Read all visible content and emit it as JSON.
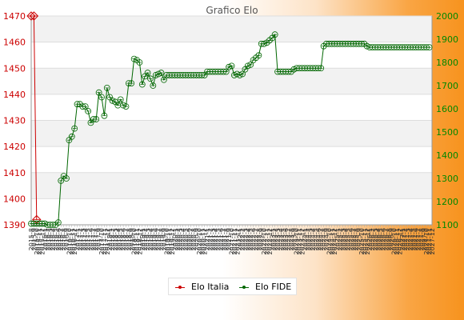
{
  "chart_data": {
    "type": "line",
    "title": "Grafico Elo",
    "x_tick_labels": [
      "2015-8",
      "2015-9",
      "2015-10",
      "2015-11",
      "2015-12",
      "2016-1",
      "2016-2",
      "2016-3",
      "2016-4",
      "2016-5",
      "2016-6",
      "2016-7",
      "2016-8",
      "2016-9",
      "2016-10",
      "2016-11",
      "2016-12",
      "2017-1",
      "2017-2",
      "2017-3",
      "2017-4",
      "2017-5",
      "2017-6",
      "2017-7",
      "2017-8",
      "2017-9",
      "2017-10",
      "2017-11",
      "2017-12",
      "2018-1",
      "2018-2",
      "2018-3",
      "2018-4",
      "2018-5",
      "2018-6",
      "2018-7",
      "2018-8",
      "2018-9",
      "2018-10",
      "2018-11",
      "2018-12",
      "2019-1",
      "2019-2",
      "2019-3",
      "2019-4",
      "2019-5",
      "2019-6",
      "2019-7",
      "2019-8",
      "2019-9",
      "2019-10",
      "2019-11",
      "2019-12",
      "2020-1",
      "2020-2",
      "2020-3",
      "2020-4",
      "2020-5",
      "2020-6",
      "2020-7",
      "2020-8",
      "2020-9",
      "2020-10",
      "2020-11",
      "2020-12",
      "2021-1",
      "2021-2",
      "2021-3",
      "2021-4",
      "2021-5",
      "2021-6",
      "2021-7",
      "2021-8",
      "2021-9",
      "2021-10",
      "2021-11",
      "2021-12",
      "2022-1",
      "2022-2",
      "2022-3",
      "2022-4",
      "2022-5",
      "2022-6",
      "2022-7",
      "2022-8",
      "2022-9",
      "2022-10",
      "2022-11",
      "2022-12",
      "2023-1",
      "2023-2",
      "2023-3",
      "2023-4",
      "2023-5",
      "2023-6",
      "2023-7",
      "2023-8",
      "2023-9",
      "2023-10",
      "2023-11",
      "2023-12",
      "2024-1",
      "2024-2",
      "2024-3",
      "2024-4",
      "2024-5",
      "2024-6",
      "2024-7",
      "2024-8",
      "2024-9",
      "2024-10",
      "2024-11",
      "2024-12",
      "2025-1",
      "2025-2",
      "2025-3",
      "2025-4",
      "2025-5",
      "2025-6",
      "2025-7",
      "2025-8",
      "2025-9",
      "2025-10",
      "2025-11",
      "2025-12",
      "2026-1",
      "2026-2",
      "2026-3",
      "2026-4",
      "2026-5",
      "2026-6",
      "2026-7",
      "2026-8",
      "2026-9",
      "2026-10",
      "2026-11",
      "2026-12",
      "2027-1",
      "2027-2",
      "2027-3",
      "2027-4",
      "2027-5",
      "2027-6",
      "2027-7",
      "2027-8",
      "2027-9",
      "2027-10",
      "2027-11",
      "2027-12"
    ],
    "y_left": {
      "min": 1390,
      "max": 1470,
      "ticks": [
        1390,
        1400,
        1410,
        1420,
        1430,
        1440,
        1450,
        1460,
        1470
      ]
    },
    "y_right": {
      "min": 1100,
      "max": 2000,
      "ticks": [
        1100,
        1200,
        1300,
        1400,
        1500,
        1600,
        1700,
        1800,
        1900,
        2000
      ]
    },
    "grid": true,
    "legend_position": "bottom-center",
    "series": [
      {
        "name": "Elo Italia",
        "axis": "left",
        "color": "#cc0000",
        "marker": "diamond",
        "values": [
          1470,
          1470,
          1392
        ]
      },
      {
        "name": "Elo FIDE",
        "axis": "right",
        "color": "#006600",
        "marker": "circle",
        "values": [
          1105,
          1105,
          1105,
          1105,
          1105,
          1105,
          1100,
          1100,
          1100,
          1100,
          1110,
          1290,
          1310,
          1300,
          1465,
          1480,
          1515,
          1620,
          1620,
          1610,
          1610,
          1590,
          1540,
          1555,
          1555,
          1670,
          1650,
          1570,
          1690,
          1650,
          1635,
          1630,
          1615,
          1640,
          1615,
          1610,
          1710,
          1710,
          1815,
          1810,
          1800,
          1705,
          1740,
          1755,
          1730,
          1700,
          1745,
          1750,
          1755,
          1725,
          1745,
          1745,
          1745,
          1745,
          1745,
          1745,
          1745,
          1745,
          1745,
          1745,
          1745,
          1745,
          1745,
          1745,
          1745,
          1760,
          1760,
          1760,
          1760,
          1760,
          1760,
          1760,
          1760,
          1780,
          1785,
          1745,
          1750,
          1745,
          1750,
          1770,
          1785,
          1790,
          1810,
          1820,
          1830,
          1880,
          1880,
          1885,
          1895,
          1905,
          1920,
          1760,
          1760,
          1760,
          1760,
          1760,
          1760,
          1770,
          1775,
          1775,
          1775,
          1775,
          1775,
          1775,
          1775,
          1775,
          1775,
          1775,
          1870,
          1880,
          1880,
          1880,
          1880,
          1880,
          1880,
          1880,
          1880,
          1880,
          1880,
          1880,
          1880,
          1880,
          1880,
          1880,
          1870,
          1865,
          1865,
          1865,
          1865,
          1865,
          1865,
          1865,
          1865,
          1865,
          1865,
          1865,
          1865,
          1865,
          1865,
          1865,
          1865,
          1865,
          1865,
          1865,
          1865,
          1865,
          1865,
          1865
        ]
      }
    ]
  },
  "legend": {
    "items": [
      {
        "label": "Elo Italia",
        "color": "#cc0000"
      },
      {
        "label": "Elo FIDE",
        "color": "#006600"
      }
    ]
  }
}
